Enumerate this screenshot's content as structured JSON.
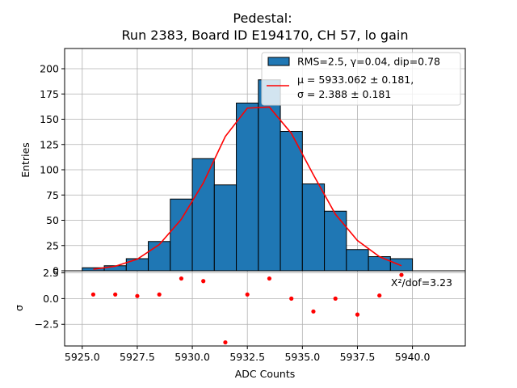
{
  "chart_data": {
    "type": "bar",
    "title_line1": "Pedestal:",
    "title_line2": "Run 2383, Board ID E194170, CH 57, lo gain",
    "xlabel": "ADC Counts",
    "xlim": [
      5924.2,
      5942.4
    ],
    "x_ticks": [
      "5925.0",
      "5927.5",
      "5930.0",
      "5932.5",
      "5935.0",
      "5937.5",
      "5940.0"
    ],
    "x_tick_values": [
      5925.0,
      5927.5,
      5930.0,
      5932.5,
      5935.0,
      5937.5,
      5940.0
    ],
    "grid": true,
    "histogram": {
      "ylabel": "Entries",
      "ylim": [
        0,
        220
      ],
      "y_ticks": [
        "0",
        "25",
        "50",
        "75",
        "100",
        "125",
        "150",
        "175",
        "200"
      ],
      "y_tick_values": [
        0,
        25,
        50,
        75,
        100,
        125,
        150,
        175,
        200
      ],
      "bin_edges": [
        5925,
        5926,
        5927,
        5928,
        5929,
        5930,
        5931,
        5932,
        5933,
        5934,
        5935,
        5936,
        5937,
        5938,
        5939,
        5940
      ],
      "counts": [
        3,
        5,
        12,
        29,
        71,
        111,
        85,
        166,
        189,
        138,
        86,
        59,
        21,
        14,
        12
      ],
      "bar_color": "#1f77b4",
      "legend_hist_label": "RMS=2.5, γ=0.04, dip=0.78",
      "fit": {
        "color": "#ff0000",
        "x": [
          5925.5,
          5926.5,
          5927.5,
          5928.5,
          5929.5,
          5930.5,
          5931.5,
          5932.5,
          5933.5,
          5934.5,
          5935.5,
          5936.5,
          5937.5,
          5938.5,
          5939.5
        ],
        "y": [
          1.5,
          4.5,
          11.5,
          26,
          51,
          87,
          133,
          161,
          162,
          136,
          95,
          56,
          30,
          14,
          5
        ],
        "legend_line1": "μ = 5933.062 ± 0.181,",
        "legend_line2": "σ = 2.388 ± 0.181"
      },
      "legend_position": "top-right"
    },
    "residuals": {
      "ylabel": "σ",
      "ylim": [
        -4.6,
        2.7
      ],
      "y_ticks": [
        "2.5",
        "0.0",
        "−2.5"
      ],
      "y_tick_values": [
        2.5,
        0.0,
        -2.5
      ],
      "x": [
        5925.5,
        5926.5,
        5927.5,
        5928.5,
        5929.5,
        5930.5,
        5931.5,
        5932.5,
        5933.5,
        5934.5,
        5935.5,
        5936.5,
        5937.5,
        5938.5,
        5939.5
      ],
      "y": [
        0.4,
        0.4,
        0.25,
        0.4,
        1.95,
        1.7,
        -4.25,
        0.4,
        1.95,
        0.0,
        -1.25,
        0.0,
        -1.55,
        0.3,
        2.3
      ],
      "point_color": "#ff0000",
      "annotation": "X²/dof=3.23"
    }
  }
}
